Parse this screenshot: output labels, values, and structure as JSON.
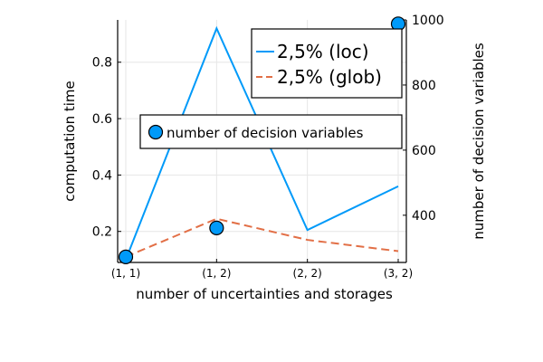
{
  "chart_data": {
    "type": "line",
    "categories": [
      "(1, 1)",
      "(1, 2)",
      "(2, 2)",
      "(3, 2)"
    ],
    "xlabel": "number of uncertainties and storages",
    "ylabel": "computation time",
    "y2label": "number of decision variables",
    "ylim": [
      0.09,
      0.95
    ],
    "y2lim": [
      255,
      1000
    ],
    "yticks": [
      "0.2",
      "0.4",
      "0.6",
      "0.8"
    ],
    "y2ticks": [
      "400",
      "600",
      "800",
      "1000"
    ],
    "grid": true,
    "series": [
      {
        "name": "2,5% (loc)",
        "axis": "left",
        "style": "solid",
        "color": "#009af9",
        "values": [
          0.1,
          0.92,
          0.205,
          0.36
        ]
      },
      {
        "name": "2,5% (glob)",
        "axis": "left",
        "style": "dashed",
        "color": "#e26f46",
        "values": [
          0.11,
          0.245,
          0.17,
          0.13
        ]
      },
      {
        "name": "number of decision variables",
        "axis": "right",
        "style": "markers",
        "color": "#009af9",
        "values": [
          272,
          361,
          null,
          988
        ]
      }
    ],
    "legends": [
      {
        "position": "top-right",
        "entries": [
          "2,5% (loc)",
          "2,5% (glob)"
        ]
      },
      {
        "position": "center-right",
        "entries": [
          "number of decision variables"
        ]
      }
    ]
  }
}
